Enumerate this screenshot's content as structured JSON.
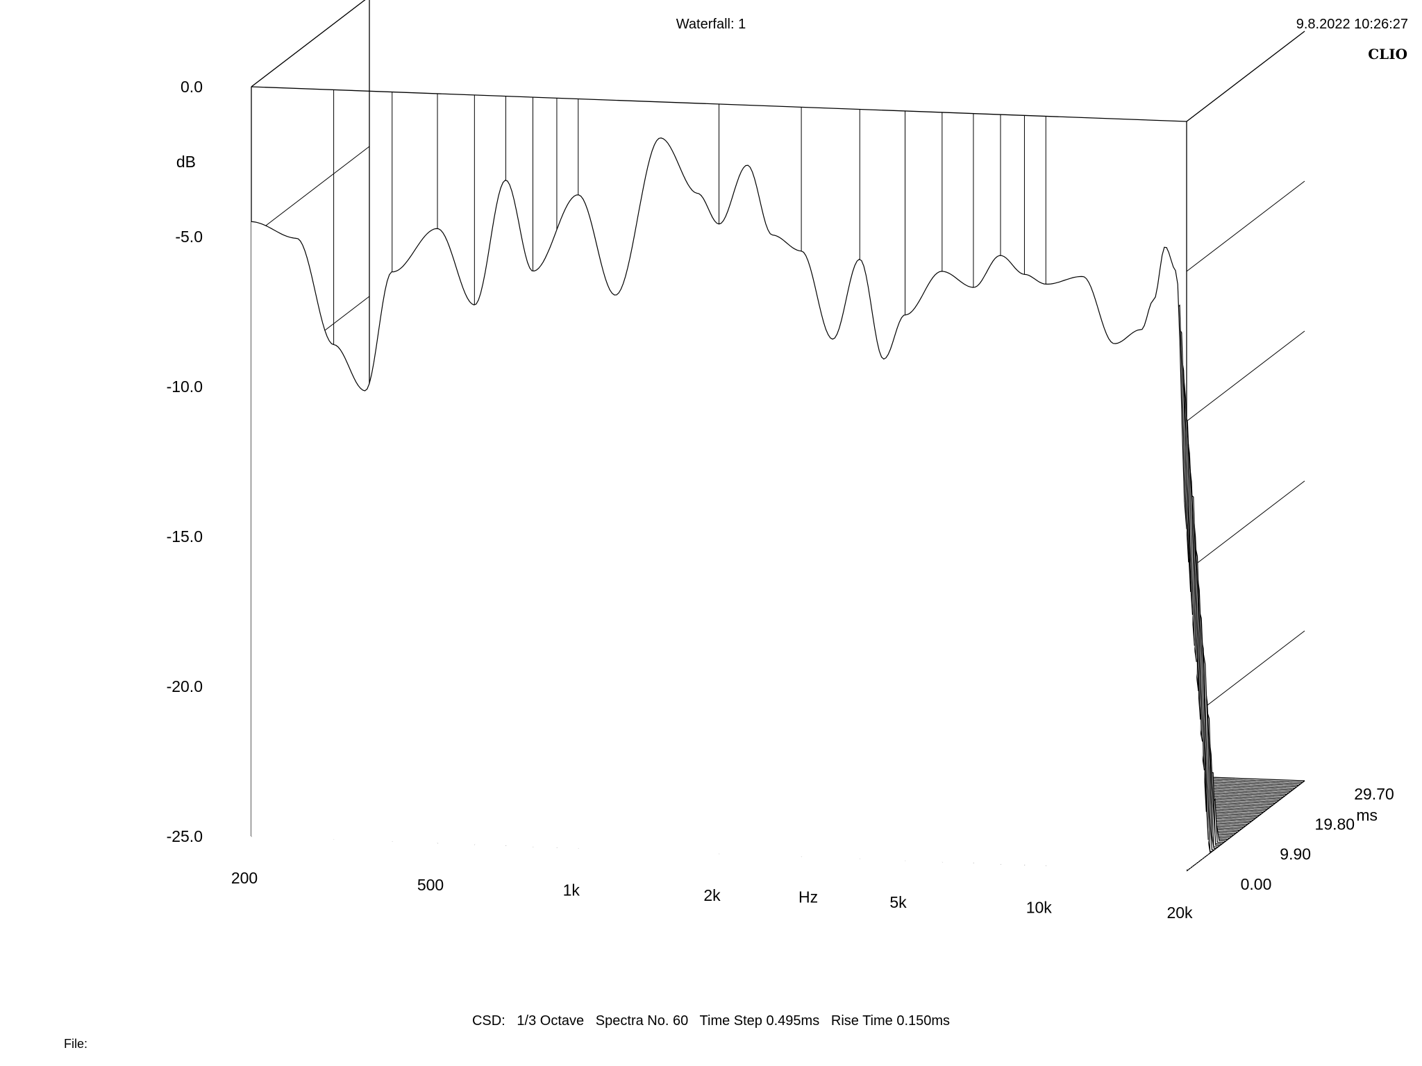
{
  "header": {
    "title": "Waterfall: 1",
    "datetime": "9.8.2022 10:26:27",
    "brand": "CLIO"
  },
  "footer": {
    "csd": "CSD:",
    "octave": "1/3 Octave",
    "spectra": "Spectra No. 60",
    "time_step": "Time Step 0.495ms",
    "rise_time": "Rise Time 0.150ms"
  },
  "file": {
    "label": "File:"
  },
  "chart_data": {
    "type": "waterfall",
    "title": "Waterfall: 1",
    "x_axis": {
      "label": "Hz",
      "scale": "log",
      "range": [
        200,
        20000
      ],
      "ticks": [
        "200",
        "500",
        "1k",
        "2k",
        "5k",
        "10k",
        "20k"
      ],
      "tick_values": [
        200,
        500,
        1000,
        2000,
        5000,
        10000,
        20000
      ]
    },
    "y_axis": {
      "label": "dB",
      "range": [
        -25,
        0
      ],
      "ticks": [
        "0.0",
        "-5.0",
        "-10.0",
        "-15.0",
        "-20.0",
        "-25.0"
      ],
      "tick_values": [
        0,
        -5,
        -10,
        -15,
        -20,
        -25
      ]
    },
    "z_axis": {
      "label": "ms",
      "range": [
        0,
        29.7
      ],
      "ticks": [
        "0.00",
        "9.90",
        "19.80",
        "29.70"
      ],
      "tick_values": [
        0,
        9.9,
        19.8,
        29.7
      ]
    },
    "spectra_count": 60,
    "time_step_ms": 0.495,
    "grid_hz": [
      200,
      300,
      400,
      500,
      600,
      700,
      800,
      900,
      1000,
      2000,
      3000,
      4000,
      5000,
      6000,
      7000,
      8000,
      9000,
      10000,
      20000
    ],
    "first_spectrum": {
      "freq_hz": [
        200,
        250,
        300,
        350,
        400,
        500,
        600,
        700,
        800,
        1000,
        1200,
        1500,
        1800,
        2000,
        2300,
        2600,
        3000,
        3500,
        4000,
        4500,
        5000,
        6000,
        7000,
        8000,
        9000,
        10000,
        12000,
        14000,
        16000,
        17000,
        18000,
        19000,
        20000
      ],
      "db": [
        -4.5,
        -5,
        -8.5,
        -10,
        -6,
        -4.5,
        -7,
        -2.8,
        -5.8,
        -3.2,
        -6.5,
        -1.2,
        -3,
        -4,
        -2,
        -4.3,
        -4.8,
        -7.7,
        -5,
        -8.3,
        -6.8,
        -5.3,
        -5.8,
        -4.7,
        -5.3,
        -5.6,
        -5.3,
        -7.5,
        -7,
        -6,
        -4.2,
        -5,
        -13.6
      ]
    }
  }
}
